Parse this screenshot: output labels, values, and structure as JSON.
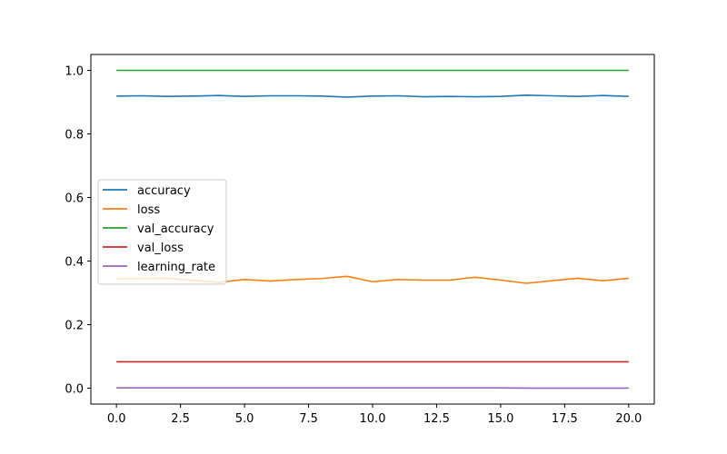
{
  "chart_data": {
    "type": "line",
    "title": "",
    "xlabel": "",
    "ylabel": "",
    "xlim": [
      -1.0,
      21.0
    ],
    "ylim": [
      -0.05,
      1.05
    ],
    "grid": false,
    "legend_position": "center-left",
    "xticks": [
      0.0,
      2.5,
      5.0,
      7.5,
      10.0,
      12.5,
      15.0,
      17.5,
      20.0
    ],
    "xtick_labels": [
      "0.0",
      "2.5",
      "5.0",
      "7.5",
      "10.0",
      "12.5",
      "15.0",
      "17.5",
      "20.0"
    ],
    "yticks": [
      0.0,
      0.2,
      0.4,
      0.6,
      0.8,
      1.0
    ],
    "ytick_labels": [
      "0.0",
      "0.2",
      "0.4",
      "0.6",
      "0.8",
      "1.0"
    ],
    "x": [
      0,
      1,
      2,
      3,
      4,
      5,
      6,
      7,
      8,
      9,
      10,
      11,
      12,
      13,
      14,
      15,
      16,
      17,
      18,
      19,
      20
    ],
    "series": [
      {
        "name": "accuracy",
        "color": "#1f77b4",
        "values": [
          0.919,
          0.92,
          0.918,
          0.919,
          0.921,
          0.918,
          0.92,
          0.92,
          0.919,
          0.916,
          0.919,
          0.92,
          0.917,
          0.918,
          0.917,
          0.918,
          0.922,
          0.92,
          0.918,
          0.921,
          0.918
        ]
      },
      {
        "name": "loss",
        "color": "#ff7f0e",
        "values": [
          0.344,
          0.345,
          0.346,
          0.339,
          0.333,
          0.342,
          0.337,
          0.342,
          0.345,
          0.352,
          0.335,
          0.342,
          0.34,
          0.34,
          0.349,
          0.34,
          0.33,
          0.338,
          0.346,
          0.338,
          0.346
        ]
      },
      {
        "name": "val_accuracy",
        "color": "#2ca02c",
        "values": [
          1.0,
          1.0,
          1.0,
          1.0,
          1.0,
          1.0,
          1.0,
          1.0,
          1.0,
          1.0,
          1.0,
          1.0,
          1.0,
          1.0,
          1.0,
          1.0,
          1.0,
          1.0,
          1.0,
          1.0,
          1.0
        ]
      },
      {
        "name": "val_loss",
        "color": "#d62728",
        "values": [
          0.083,
          0.083,
          0.083,
          0.083,
          0.083,
          0.083,
          0.083,
          0.083,
          0.083,
          0.083,
          0.083,
          0.083,
          0.083,
          0.083,
          0.083,
          0.083,
          0.083,
          0.083,
          0.083,
          0.083,
          0.083
        ]
      },
      {
        "name": "learning_rate",
        "color": "#9467bd",
        "values": [
          0.001,
          0.001,
          0.001,
          0.001,
          0.001,
          0.001,
          0.001,
          0.001,
          0.001,
          0.001,
          0.001,
          0.001,
          0.001,
          0.001,
          0.001,
          0.001,
          0.0001,
          0.0001,
          0.0001,
          0.0001,
          0.0001
        ]
      }
    ]
  }
}
